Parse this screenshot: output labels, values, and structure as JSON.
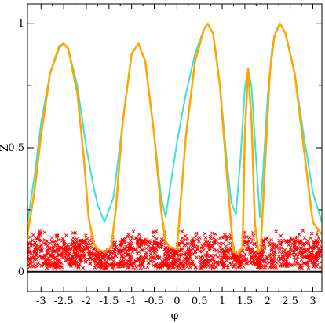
{
  "chart_data": {
    "type": "line",
    "title": "",
    "xlabel": "φ",
    "ylabel": "Z",
    "xlim": [
      -3.3,
      3.2
    ],
    "ylim": [
      -0.08,
      1.08
    ],
    "x_ticks": [
      -3,
      -2.5,
      -2,
      -1.5,
      -1,
      -0.5,
      0,
      0.5,
      1,
      1.5,
      2,
      2.5,
      3
    ],
    "x_tick_labels": [
      "-3",
      "-2.5",
      "-2",
      "-1.5",
      "-1",
      "-0.5",
      "0",
      "0.5",
      "1",
      "1.5",
      "2",
      "2.5",
      "3"
    ],
    "y_ticks": [
      0,
      0.5,
      1
    ],
    "y_tick_labels": [
      "0",
      "0.5",
      "1"
    ],
    "grid": false,
    "reference_line": {
      "y": 0,
      "color": "#000000"
    },
    "peaks": [
      {
        "phi": -2.5,
        "Z": 0.92
      },
      {
        "phi": -0.85,
        "Z": 0.92
      },
      {
        "phi": 0.68,
        "Z": 1.0
      },
      {
        "phi": 1.57,
        "Z": 0.82
      },
      {
        "phi": 2.28,
        "Z": 1.0
      }
    ],
    "series": [
      {
        "color": "#40e0d0",
        "x": [
          -3.3,
          -3.15,
          -3.0,
          -2.8,
          -2.6,
          -2.5,
          -2.4,
          -2.2,
          -2.0,
          -1.85,
          -1.75,
          -1.6,
          -1.4,
          -1.2,
          -1.0,
          -0.85,
          -0.7,
          -0.5,
          -0.35,
          -0.25,
          -0.1,
          0.0,
          0.2,
          0.4,
          0.6,
          0.68,
          0.8,
          0.95,
          1.1,
          1.2,
          1.3,
          1.4,
          1.5,
          1.57,
          1.65,
          1.75,
          1.83,
          1.9,
          2.0,
          2.1,
          2.2,
          2.28,
          2.4,
          2.6,
          2.8,
          3.0,
          3.2
        ],
        "y": [
          0.2,
          0.38,
          0.6,
          0.8,
          0.9,
          0.92,
          0.9,
          0.75,
          0.5,
          0.35,
          0.27,
          0.2,
          0.3,
          0.6,
          0.88,
          0.92,
          0.85,
          0.55,
          0.3,
          0.22,
          0.4,
          0.52,
          0.72,
          0.88,
          0.98,
          1.0,
          0.96,
          0.75,
          0.45,
          0.28,
          0.23,
          0.45,
          0.74,
          0.82,
          0.74,
          0.45,
          0.22,
          0.4,
          0.7,
          0.9,
          0.98,
          1.0,
          0.96,
          0.8,
          0.55,
          0.32,
          0.2
        ]
      },
      {
        "color": "#ffa500",
        "x": [
          -3.3,
          -3.15,
          -3.0,
          -2.8,
          -2.6,
          -2.5,
          -2.4,
          -2.2,
          -2.05,
          -1.95,
          -1.85,
          -1.75,
          -1.6,
          -1.45,
          -1.35,
          -1.2,
          -1.0,
          -0.85,
          -0.7,
          -0.5,
          -0.35,
          -0.25,
          -0.15,
          0.0,
          0.2,
          0.4,
          0.6,
          0.68,
          0.8,
          0.95,
          1.1,
          1.2,
          1.25,
          1.35,
          1.45,
          1.5,
          1.57,
          1.65,
          1.72,
          1.8,
          1.85,
          1.95,
          2.05,
          2.15,
          2.28,
          2.4,
          2.6,
          2.8,
          3.0,
          3.2
        ],
        "y": [
          0.15,
          0.32,
          0.55,
          0.8,
          0.91,
          0.92,
          0.9,
          0.72,
          0.45,
          0.22,
          0.12,
          0.09,
          0.08,
          0.1,
          0.25,
          0.6,
          0.88,
          0.92,
          0.85,
          0.55,
          0.25,
          0.12,
          0.1,
          0.09,
          0.55,
          0.85,
          0.98,
          1.0,
          0.96,
          0.75,
          0.4,
          0.18,
          0.08,
          0.07,
          0.1,
          0.55,
          0.82,
          0.6,
          0.2,
          0.08,
          0.09,
          0.45,
          0.8,
          0.95,
          1.0,
          0.96,
          0.8,
          0.5,
          0.2,
          0.15
        ]
      }
    ],
    "scatter_band": {
      "color": "#ff0000",
      "description_range_Z": [
        0.0,
        0.12
      ]
    }
  }
}
